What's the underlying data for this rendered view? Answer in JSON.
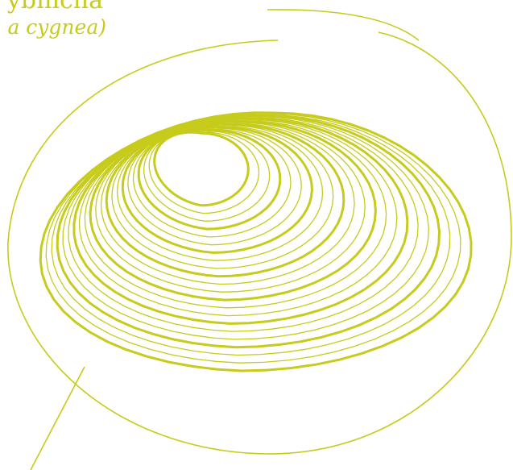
{
  "header": {
    "title": "ybnicha",
    "subtitle": "a cygnea)"
  }
}
